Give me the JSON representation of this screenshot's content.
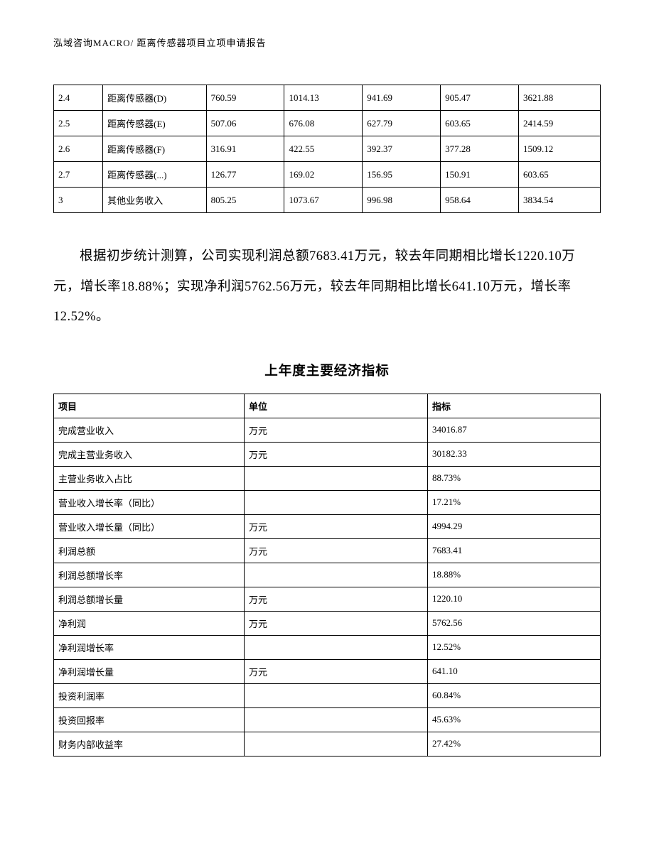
{
  "header": {
    "text": "泓域咨询MACRO/   距离传感器项目立项申请报告"
  },
  "table1": {
    "rows": [
      {
        "idx": "2.4",
        "name": "距离传感器(D)",
        "v1": "760.59",
        "v2": "1014.13",
        "v3": "941.69",
        "v4": "905.47",
        "v5": "3621.88"
      },
      {
        "idx": "2.5",
        "name": "距离传感器(E)",
        "v1": "507.06",
        "v2": "676.08",
        "v3": "627.79",
        "v4": "603.65",
        "v5": "2414.59"
      },
      {
        "idx": "2.6",
        "name": "距离传感器(F)",
        "v1": "316.91",
        "v2": "422.55",
        "v3": "392.37",
        "v4": "377.28",
        "v5": "1509.12"
      },
      {
        "idx": "2.7",
        "name": "距离传感器(...)",
        "v1": "126.77",
        "v2": "169.02",
        "v3": "156.95",
        "v4": "150.91",
        "v5": "603.65"
      },
      {
        "idx": "3",
        "name": "其他业务收入",
        "v1": "805.25",
        "v2": "1073.67",
        "v3": "996.98",
        "v4": "958.64",
        "v5": "3834.54"
      }
    ]
  },
  "paragraph": {
    "text": "根据初步统计测算，公司实现利润总额7683.41万元，较去年同期相比增长1220.10万元，增长率18.88%；实现净利润5762.56万元，较去年同期相比增长641.10万元，增长率12.52%。"
  },
  "section_title": "上年度主要经济指标",
  "table2": {
    "headers": {
      "col1": "项目",
      "col2": "单位",
      "col3": "指标"
    },
    "rows": [
      {
        "item": "完成营业收入",
        "unit": "万元",
        "value": "34016.87"
      },
      {
        "item": "完成主营业务收入",
        "unit": "万元",
        "value": "30182.33"
      },
      {
        "item": "主营业务收入占比",
        "unit": "",
        "value": "88.73%"
      },
      {
        "item": "营业收入增长率（同比）",
        "unit": "",
        "value": "17.21%"
      },
      {
        "item": "营业收入增长量（同比）",
        "unit": "万元",
        "value": "4994.29"
      },
      {
        "item": "利润总额",
        "unit": "万元",
        "value": "7683.41"
      },
      {
        "item": "利润总额增长率",
        "unit": "",
        "value": "18.88%"
      },
      {
        "item": "利润总额增长量",
        "unit": "万元",
        "value": "1220.10"
      },
      {
        "item": "净利润",
        "unit": "万元",
        "value": "5762.56"
      },
      {
        "item": "净利润增长率",
        "unit": "",
        "value": "12.52%"
      },
      {
        "item": "净利润增长量",
        "unit": "万元",
        "value": "641.10"
      },
      {
        "item": "投资利润率",
        "unit": "",
        "value": "60.84%"
      },
      {
        "item": "投资回报率",
        "unit": "",
        "value": "45.63%"
      },
      {
        "item": "财务内部收益率",
        "unit": "",
        "value": "27.42%"
      }
    ]
  }
}
